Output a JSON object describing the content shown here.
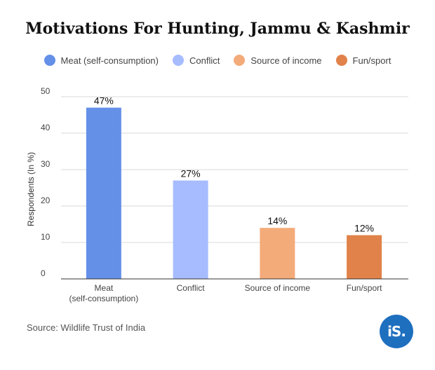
{
  "chart_data": {
    "type": "bar",
    "title": "Motivations For Hunting, Jammu & Kashmir",
    "ylabel": "Respondents (In %)",
    "xlabel": "",
    "ylim": [
      0,
      50
    ],
    "yticks": [
      0,
      10,
      20,
      30,
      40,
      50
    ],
    "grid": true,
    "legend_position": "top",
    "categories": [
      "Meat (self-consumption)",
      "Conflict",
      "Source of income",
      "Fun/sport"
    ],
    "category_tick_lines": [
      [
        "Meat",
        "(self-consumption)"
      ],
      [
        "Conflict"
      ],
      [
        "Source of income"
      ],
      [
        "Fun/sport"
      ]
    ],
    "values": [
      47,
      27,
      14,
      12
    ],
    "data_labels": [
      "47%",
      "27%",
      "14%",
      "12%"
    ],
    "colors": [
      "#6490e8",
      "#a6bcff",
      "#f4ab7a",
      "#e0824a"
    ]
  },
  "legend": [
    {
      "label": "Meat (self-consumption)",
      "color": "#6490e8"
    },
    {
      "label": "Conflict",
      "color": "#a6bcff"
    },
    {
      "label": "Source of income",
      "color": "#f4ab7a"
    },
    {
      "label": "Fun/sport",
      "color": "#e0824a"
    }
  ],
  "source": "Source: Wildlife Trust of India",
  "logo_text": "iS."
}
